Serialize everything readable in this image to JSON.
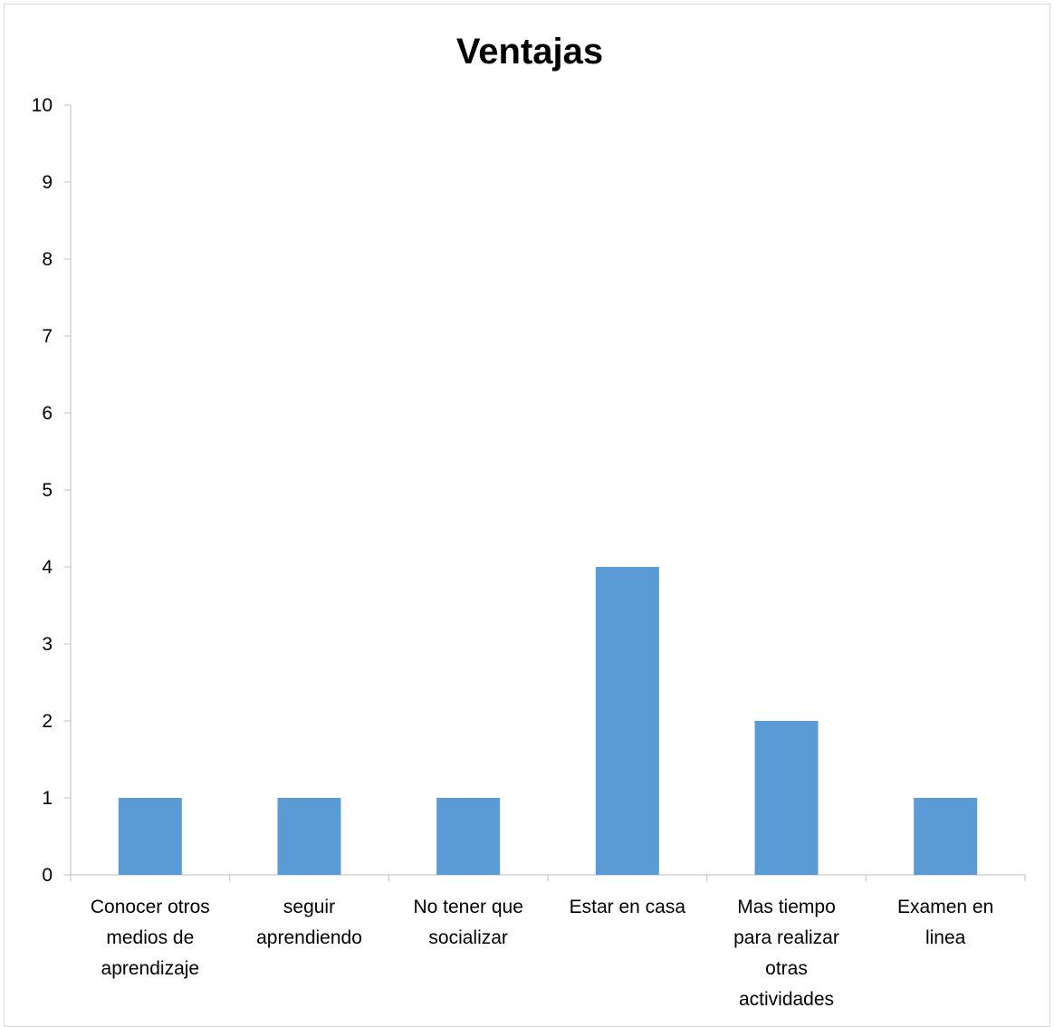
{
  "chart_data": {
    "type": "bar",
    "title": "Ventajas",
    "xlabel": "",
    "ylabel": "",
    "categories": [
      [
        "Conocer otros",
        "medios de",
        "aprendizaje"
      ],
      [
        "seguir",
        "aprendiendo"
      ],
      [
        "No tener que",
        "socializar"
      ],
      [
        "Estar en casa"
      ],
      [
        "Mas tiempo",
        "para realizar",
        "otras",
        "actividades"
      ],
      [
        "Examen en",
        "linea"
      ]
    ],
    "values": [
      1,
      1,
      1,
      4,
      2,
      1
    ],
    "ylim": [
      0,
      10
    ],
    "yticks": [
      0,
      1,
      2,
      3,
      4,
      5,
      6,
      7,
      8,
      9,
      10
    ],
    "grid": false,
    "legend": "none",
    "bar_color": "#5b9bd5",
    "axis_color": "#bfbfbf"
  }
}
